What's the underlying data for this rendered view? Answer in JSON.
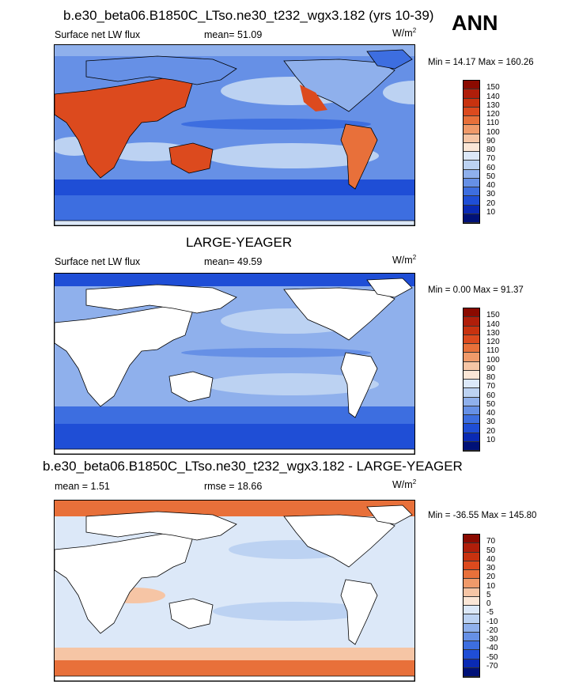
{
  "ann_label": "ANN",
  "panels": [
    {
      "title": "b.e30_beta06.B1850C_LTso.ne30_t232_wgx3.182 (yrs 10-39)",
      "left_label": "Surface net LW flux",
      "center_label": "mean=  51.09",
      "units": "W/m",
      "units_sup": "2",
      "minmax": "Min =  14.17 Max = 160.26",
      "colorbar_labels": [
        "150",
        "140",
        "130",
        "120",
        "110",
        "100",
        "90",
        "80",
        "70",
        "60",
        "50",
        "40",
        "30",
        "20",
        "10"
      ],
      "colorbar_colors": [
        "#8b0a00",
        "#b01e0a",
        "#c8320f",
        "#dc4a1e",
        "#e8703a",
        "#f09a6a",
        "#f6c5a5",
        "#fbe6d6",
        "#dce8f8",
        "#bcd2f2",
        "#8fb0ec",
        "#6690e6",
        "#3d6ee0",
        "#1f4ed6",
        "#0a2ab4",
        "#001178"
      ]
    },
    {
      "title": "LARGE-YEAGER",
      "left_label": "Surface net LW flux",
      "center_label": "mean=  49.59",
      "units": "W/m",
      "units_sup": "2",
      "minmax": "Min =   0.00 Max =  91.37",
      "colorbar_labels": [
        "150",
        "140",
        "130",
        "120",
        "110",
        "100",
        "90",
        "80",
        "70",
        "60",
        "50",
        "40",
        "30",
        "20",
        "10"
      ],
      "colorbar_colors": [
        "#8b0a00",
        "#b01e0a",
        "#c8320f",
        "#dc4a1e",
        "#e8703a",
        "#f09a6a",
        "#f6c5a5",
        "#fbe6d6",
        "#dce8f8",
        "#bcd2f2",
        "#8fb0ec",
        "#6690e6",
        "#3d6ee0",
        "#1f4ed6",
        "#0a2ab4",
        "#001178"
      ]
    },
    {
      "title": "b.e30_beta06.B1850C_LTso.ne30_t232_wgx3.182 - LARGE-YEAGER",
      "left_label": "mean =   1.51",
      "center_label": "rmse =  18.66",
      "units": "W/m",
      "units_sup": "2",
      "minmax": "Min = -36.55 Max = 145.80",
      "colorbar_labels": [
        "70",
        "50",
        "40",
        "30",
        "20",
        "10",
        "5",
        "0",
        "-5",
        "-10",
        "-20",
        "-30",
        "-40",
        "-50",
        "-70"
      ],
      "colorbar_colors": [
        "#8b0a00",
        "#b01e0a",
        "#c8320f",
        "#dc4a1e",
        "#e8703a",
        "#f09a6a",
        "#f6c5a5",
        "#fbe6d6",
        "#dce8f8",
        "#bcd2f2",
        "#8fb0ec",
        "#6690e6",
        "#3d6ee0",
        "#1f4ed6",
        "#0a2ab4",
        "#001178"
      ]
    }
  ],
  "chart_data": [
    {
      "type": "heatmap",
      "title": "b.e30_beta06.B1850C_LTso.ne30_t232_wgx3.182 (yrs 10-39)",
      "variable": "Surface net LW flux",
      "units": "W/m2",
      "mean": 51.09,
      "min": 14.17,
      "max": 160.26,
      "contour_levels": [
        10,
        20,
        30,
        40,
        50,
        60,
        70,
        80,
        90,
        100,
        110,
        120,
        130,
        140,
        150
      ]
    },
    {
      "type": "heatmap",
      "title": "LARGE-YEAGER",
      "variable": "Surface net LW flux",
      "units": "W/m2",
      "mean": 49.59,
      "min": 0.0,
      "max": 91.37,
      "contour_levels": [
        10,
        20,
        30,
        40,
        50,
        60,
        70,
        80,
        90,
        100,
        110,
        120,
        130,
        140,
        150
      ]
    },
    {
      "type": "heatmap",
      "title": "b.e30_beta06.B1850C_LTso.ne30_t232_wgx3.182 - LARGE-YEAGER",
      "units": "W/m2",
      "mean": 1.51,
      "rmse": 18.66,
      "min": -36.55,
      "max": 145.8,
      "contour_levels": [
        -70,
        -50,
        -40,
        -30,
        -20,
        -10,
        -5,
        0,
        5,
        10,
        20,
        30,
        40,
        50,
        70
      ]
    }
  ]
}
